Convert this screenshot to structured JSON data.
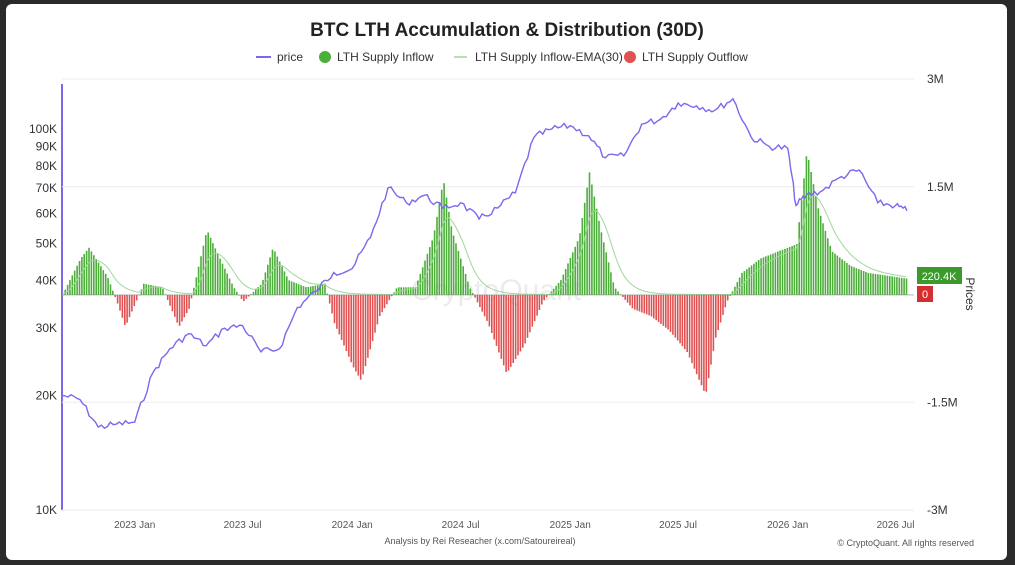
{
  "chart_data": {
    "type": "bar",
    "title": "BTC LTH Accumulation & Distribution (30D)",
    "legend": [
      "price",
      "LTH Supply Inflow",
      "LTH Supply Inflow-EMA(30)",
      "LTH Supply Outflow"
    ],
    "legend_position": "top",
    "left_axis": {
      "scale": "log",
      "ticks": [
        "10K",
        "20K",
        "30K",
        "40K",
        "50K",
        "60K",
        "70K",
        "80K",
        "90K",
        "100K"
      ],
      "tick_values": [
        10000,
        20000,
        30000,
        40000,
        50000,
        60000,
        70000,
        80000,
        90000,
        100000
      ]
    },
    "right_axis": {
      "label": "Prices",
      "ticks": [
        "3M",
        "1.5M",
        "0",
        "-1.5M",
        "-3M"
      ],
      "tick_values": [
        3000000,
        1500000,
        0,
        -1500000,
        -3000000
      ],
      "ylim": [
        -3000000,
        3000000
      ]
    },
    "x_ticks": [
      "2023 Jan",
      "2023 Jul",
      "2024 Jan",
      "2024 Jul",
      "2025 Jan",
      "2025 Jul",
      "2026 Jan",
      "2026 Jul"
    ],
    "x_tick_dates": [
      "2023-01-01",
      "2023-07-01",
      "2024-01-01",
      "2024-07-01",
      "2025-01-01",
      "2025-07-01",
      "2026-01-01",
      "2026-07-01"
    ],
    "x_range": [
      "2022-09-01",
      "2026-08-01"
    ],
    "badges": {
      "inflow_last": "220.4K",
      "outflow_last": "0"
    },
    "watermark": "CryptoQuant",
    "footer_left": "Analysis by Rei Reseacher (x.com/Satoureireal)",
    "footer_right": "© CryptoQuant. All rights reserved",
    "colors": {
      "price": "#7b68ee",
      "inflow": "#4caf3a",
      "outflow": "#e05252",
      "ema": "#9fd79a",
      "badge_green": "#3a9b2a",
      "badge_red": "#d32f2f"
    },
    "price_series": [
      [
        "2022-09-01",
        20000
      ],
      [
        "2022-10-01",
        19500
      ],
      [
        "2022-11-01",
        16500
      ],
      [
        "2022-12-01",
        16800
      ],
      [
        "2023-01-01",
        17000
      ],
      [
        "2023-02-01",
        23000
      ],
      [
        "2023-03-01",
        26500
      ],
      [
        "2023-04-01",
        29000
      ],
      [
        "2023-05-01",
        27000
      ],
      [
        "2023-06-01",
        30000
      ],
      [
        "2023-07-01",
        30500
      ],
      [
        "2023-08-01",
        26000
      ],
      [
        "2023-09-01",
        26500
      ],
      [
        "2023-10-01",
        34000
      ],
      [
        "2023-11-01",
        37500
      ],
      [
        "2023-12-01",
        42000
      ],
      [
        "2024-01-01",
        43000
      ],
      [
        "2024-02-01",
        52000
      ],
      [
        "2024-03-01",
        70000
      ],
      [
        "2024-04-01",
        64000
      ],
      [
        "2024-05-01",
        67000
      ],
      [
        "2024-06-01",
        62000
      ],
      [
        "2024-07-01",
        64000
      ],
      [
        "2024-08-01",
        58000
      ],
      [
        "2024-09-01",
        62000
      ],
      [
        "2024-10-01",
        68000
      ],
      [
        "2024-11-01",
        95000
      ],
      [
        "2024-12-01",
        100000
      ],
      [
        "2025-01-01",
        102000
      ],
      [
        "2025-02-01",
        96000
      ],
      [
        "2025-03-01",
        84000
      ],
      [
        "2025-04-01",
        85000
      ],
      [
        "2025-05-01",
        103000
      ],
      [
        "2025-06-01",
        106000
      ],
      [
        "2025-07-01",
        117000
      ],
      [
        "2025-08-01",
        115000
      ],
      [
        "2025-09-01",
        112000
      ],
      [
        "2025-10-01",
        120000
      ],
      [
        "2025-11-01",
        95000
      ],
      [
        "2025-12-01",
        90000
      ],
      [
        "2026-01-01",
        89000
      ],
      [
        "2026-01-15",
        63000
      ],
      [
        "2026-02-01",
        67000
      ],
      [
        "2026-03-01",
        69000
      ],
      [
        "2026-04-01",
        75000
      ],
      [
        "2026-05-01",
        78000
      ],
      [
        "2026-06-01",
        64000
      ],
      [
        "2026-07-01",
        63000
      ],
      [
        "2026-07-20",
        61000
      ]
    ],
    "flow_series": [
      [
        "2022-09-01",
        0
      ],
      [
        "2022-10-01",
        500000
      ],
      [
        "2022-10-15",
        650000
      ],
      [
        "2022-11-15",
        250000
      ],
      [
        "2022-12-01",
        -100000
      ],
      [
        "2022-12-15",
        -450000
      ],
      [
        "2023-01-15",
        150000
      ],
      [
        "2023-02-15",
        100000
      ],
      [
        "2023-03-15",
        -450000
      ],
      [
        "2023-04-01",
        -200000
      ],
      [
        "2023-05-01",
        900000
      ],
      [
        "2023-05-20",
        550000
      ],
      [
        "2023-06-15",
        100000
      ],
      [
        "2023-07-01",
        -100000
      ],
      [
        "2023-08-01",
        150000
      ],
      [
        "2023-08-20",
        650000
      ],
      [
        "2023-09-15",
        200000
      ],
      [
        "2023-10-15",
        100000
      ],
      [
        "2023-11-15",
        150000
      ],
      [
        "2023-12-01",
        -400000
      ],
      [
        "2024-01-01",
        -1000000
      ],
      [
        "2024-01-15",
        -1200000
      ],
      [
        "2024-02-15",
        -300000
      ],
      [
        "2024-03-15",
        100000
      ],
      [
        "2024-04-15",
        100000
      ],
      [
        "2024-05-15",
        800000
      ],
      [
        "2024-06-01",
        1600000
      ],
      [
        "2024-06-15",
        900000
      ],
      [
        "2024-07-15",
        100000
      ],
      [
        "2024-08-15",
        -400000
      ],
      [
        "2024-09-15",
        -1100000
      ],
      [
        "2024-10-15",
        -700000
      ],
      [
        "2024-11-15",
        -100000
      ],
      [
        "2024-12-15",
        200000
      ],
      [
        "2025-01-15",
        800000
      ],
      [
        "2025-02-01",
        1700000
      ],
      [
        "2025-02-20",
        900000
      ],
      [
        "2025-03-15",
        100000
      ],
      [
        "2025-04-15",
        -200000
      ],
      [
        "2025-05-15",
        -300000
      ],
      [
        "2025-06-15",
        -500000
      ],
      [
        "2025-07-15",
        -800000
      ],
      [
        "2025-08-15",
        -1400000
      ],
      [
        "2025-09-01",
        -600000
      ],
      [
        "2025-09-20",
        -100000
      ],
      [
        "2025-10-15",
        300000
      ],
      [
        "2025-11-15",
        500000
      ],
      [
        "2025-12-15",
        600000
      ],
      [
        "2026-01-15",
        700000
      ],
      [
        "2026-02-01",
        2000000
      ],
      [
        "2026-02-20",
        1200000
      ],
      [
        "2026-03-15",
        600000
      ],
      [
        "2026-04-15",
        400000
      ],
      [
        "2026-05-15",
        300000
      ],
      [
        "2026-07-20",
        220000
      ]
    ]
  }
}
